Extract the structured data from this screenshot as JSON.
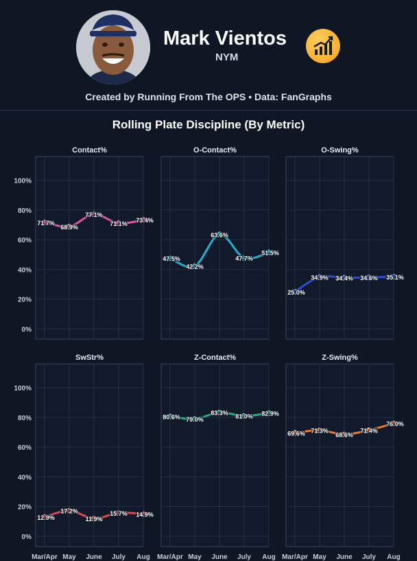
{
  "header": {
    "player_name": "Mark Vientos",
    "team": "NYM",
    "credit": "Created by Running From The OPS • Data: FanGraphs"
  },
  "chart_data": {
    "type": "line",
    "title": "Rolling Plate Discipline (By Metric)",
    "categories": [
      "Mar/Apr",
      "May",
      "June",
      "July",
      "Aug"
    ],
    "y_ticks": [
      "0%",
      "20%",
      "40%",
      "60%",
      "80%",
      "100%"
    ],
    "ylim": [
      -7,
      116
    ],
    "grid": true,
    "panels": [
      {
        "name": "Contact%",
        "color": "#e0559c",
        "values": [
          71.7,
          68.9,
          77.1,
          71.1,
          73.4
        ],
        "labels": [
          "71.7%",
          "68.9%",
          "77.1%",
          "71.1%",
          "73.4%"
        ]
      },
      {
        "name": "O-Contact%",
        "color": "#1fb1cf",
        "values": [
          47.5,
          42.2,
          63.6,
          47.7,
          51.5
        ],
        "labels": [
          "47.5%",
          "42.2%",
          "63.6%",
          "47.7%",
          "51.5%"
        ]
      },
      {
        "name": "O-Swing%",
        "color": "#2b4fd8",
        "values": [
          25.0,
          34.9,
          34.4,
          34.6,
          35.1
        ],
        "labels": [
          "25.0%",
          "34.9%",
          "34.4%",
          "34.6%",
          "35.1%"
        ]
      },
      {
        "name": "SwStr%",
        "color": "#e2484b",
        "values": [
          12.9,
          17.2,
          11.9,
          15.7,
          14.9
        ],
        "labels": [
          "12.9%",
          "17.2%",
          "11.9%",
          "15.7%",
          "14.9%"
        ]
      },
      {
        "name": "Z-Contact%",
        "color": "#1fae7d",
        "values": [
          80.6,
          79.0,
          83.3,
          81.0,
          82.9
        ],
        "labels": [
          "80.6%",
          "79.0%",
          "83.3%",
          "81.0%",
          "82.9%"
        ]
      },
      {
        "name": "Z-Swing%",
        "color": "#f0782a",
        "values": [
          69.6,
          71.3,
          68.6,
          71.4,
          76.0
        ],
        "labels": [
          "69.6%",
          "71.3%",
          "68.6%",
          "71.4%",
          "76.0%"
        ]
      }
    ]
  }
}
